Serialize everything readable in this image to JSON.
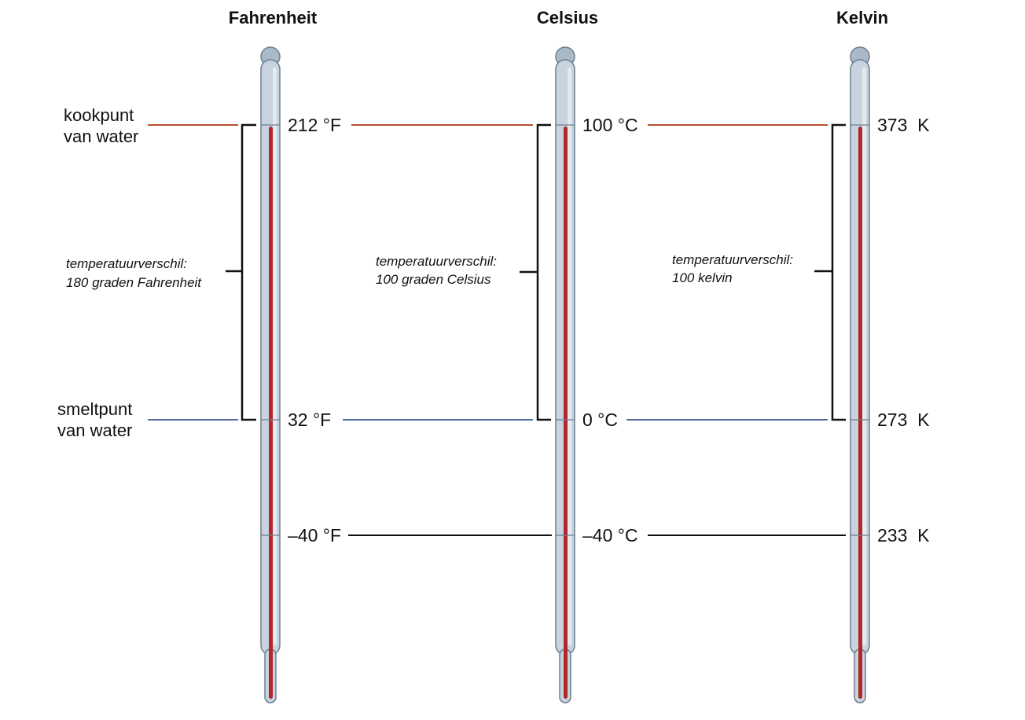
{
  "scales": [
    {
      "id": "fahrenheit",
      "title": "Fahrenheit",
      "boiling_label": "212 °F",
      "freezing_label": "32 °F",
      "minus40_label": "–40 °F",
      "difference_line1": "temperatuurverschil:",
      "difference_line2": "180 graden Fahrenheit"
    },
    {
      "id": "celsius",
      "title": "Celsius",
      "boiling_label": "100 °C",
      "freezing_label": "0 °C",
      "minus40_label": "–40 °C",
      "difference_line1": "temperatuurverschil:",
      "difference_line2": "100 graden Celsius"
    },
    {
      "id": "kelvin",
      "title": "Kelvin",
      "boiling_label": "373  K",
      "freezing_label": "273  K",
      "minus40_label": "233  K",
      "difference_line1": "temperatuurverschil:",
      "difference_line2": "100 kelvin"
    }
  ],
  "boiling_point": {
    "line1": "kookpunt",
    "line2": "van water"
  },
  "melting_point": {
    "line1": "smeltpunt",
    "line2": "van water"
  },
  "colors": {
    "boiling_line": "#b5522f",
    "melting_line": "#4f6aa0",
    "minus40_line": "#111111",
    "mercury": "#b2262c",
    "tube_fill": "#c7d3de",
    "tube_stroke": "#6e7f8e"
  }
}
